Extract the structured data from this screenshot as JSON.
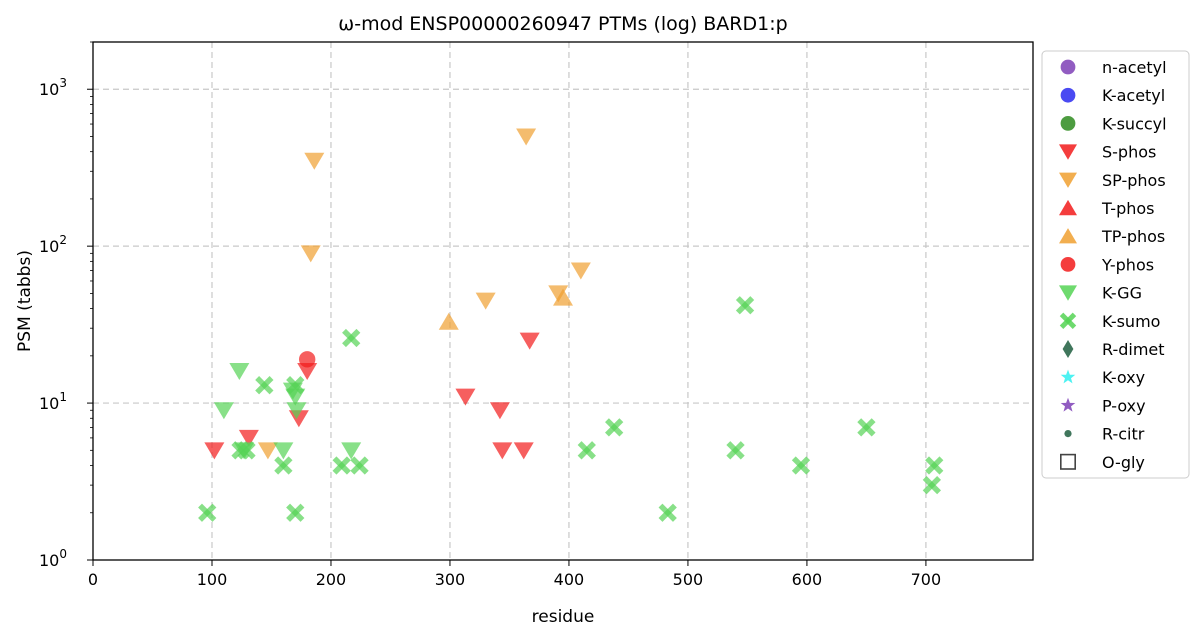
{
  "chart_data": {
    "type": "scatter",
    "title": "ω-mod ENSP00000260947 PTMs (log) BARD1:p",
    "xlabel": "residue",
    "ylabel": "PSM (tabbs)",
    "xlim": [
      0,
      790
    ],
    "ylim": [
      1,
      2000
    ],
    "y_scale": "log",
    "grid": true,
    "legend_position": "outside-right",
    "x_ticks": [
      0,
      100,
      200,
      300,
      400,
      500,
      600,
      700
    ],
    "y_ticks": [
      {
        "value": 1,
        "base": "10",
        "exp": "0"
      },
      {
        "value": 10,
        "base": "10",
        "exp": "1"
      },
      {
        "value": 100,
        "base": "10",
        "exp": "2"
      },
      {
        "value": 1000,
        "base": "10",
        "exp": "3"
      }
    ],
    "series": [
      {
        "name": "n-acetyl",
        "marker": "circle",
        "color": "#7e3fb6",
        "points": []
      },
      {
        "name": "K-acetyl",
        "marker": "circle",
        "color": "#2a2af0",
        "points": []
      },
      {
        "name": "K-succyl",
        "marker": "circle",
        "color": "#2e8b1f",
        "points": []
      },
      {
        "name": "S-phos",
        "marker": "triangle-down",
        "color": "#f21b1b",
        "points": [
          [
            102,
            5
          ],
          [
            131,
            6
          ],
          [
            173,
            8
          ],
          [
            180,
            16
          ],
          [
            313,
            11
          ],
          [
            342,
            9
          ],
          [
            344,
            5
          ],
          [
            362,
            5
          ],
          [
            367,
            25
          ]
        ]
      },
      {
        "name": "SP-phos",
        "marker": "triangle-down",
        "color": "#f0a030",
        "points": [
          [
            147,
            5
          ],
          [
            183,
            90
          ],
          [
            186,
            350
          ],
          [
            330,
            45
          ],
          [
            364,
            500
          ],
          [
            391,
            50
          ],
          [
            410,
            70
          ]
        ]
      },
      {
        "name": "T-phos",
        "marker": "triangle-up",
        "color": "#f21b1b",
        "points": []
      },
      {
        "name": "TP-phos",
        "marker": "triangle-up",
        "color": "#f0a030",
        "points": [
          [
            299,
            33
          ],
          [
            395,
            47
          ]
        ]
      },
      {
        "name": "Y-phos",
        "marker": "circle",
        "color": "#f21b1b",
        "points": [
          [
            180,
            19
          ]
        ]
      },
      {
        "name": "K-GG",
        "marker": "triangle-down",
        "color": "#55d355",
        "points": [
          [
            110,
            9
          ],
          [
            123,
            16
          ],
          [
            127,
            5
          ],
          [
            160,
            5
          ],
          [
            168,
            12
          ],
          [
            170,
            11
          ],
          [
            171,
            9
          ],
          [
            217,
            5
          ]
        ]
      },
      {
        "name": "K-sumo",
        "marker": "x-thick",
        "color": "#55d355",
        "points": [
          [
            96,
            2
          ],
          [
            124,
            5
          ],
          [
            129,
            5
          ],
          [
            144,
            13
          ],
          [
            160,
            4
          ],
          [
            170,
            2
          ],
          [
            170,
            13
          ],
          [
            209,
            4
          ],
          [
            217,
            26
          ],
          [
            224,
            4
          ],
          [
            415,
            5
          ],
          [
            438,
            7
          ],
          [
            483,
            2
          ],
          [
            540,
            5
          ],
          [
            548,
            42
          ],
          [
            595,
            4
          ],
          [
            650,
            7
          ],
          [
            705,
            3
          ],
          [
            707,
            4
          ]
        ]
      },
      {
        "name": "R-dimet",
        "marker": "diamond",
        "color": "#1f5e3f",
        "points": []
      },
      {
        "name": "K-oxy",
        "marker": "star",
        "color": "#2ef0f0",
        "points": []
      },
      {
        "name": "P-oxy",
        "marker": "star",
        "color": "#7e3fb6",
        "points": []
      },
      {
        "name": "R-citr",
        "marker": "dot",
        "color": "#1f5e3f",
        "points": []
      },
      {
        "name": "O-gly",
        "marker": "square-open",
        "color": "#444444",
        "points": []
      }
    ]
  }
}
